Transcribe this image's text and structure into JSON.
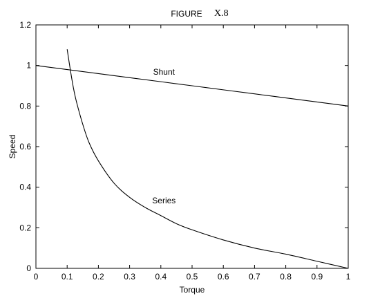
{
  "title_prefix": "FIGURE",
  "title_number": "X.8",
  "chart_data": {
    "type": "line",
    "title": "FIGURE X.8",
    "xlabel": "Torque",
    "ylabel": "Speed",
    "xlim": [
      0,
      1
    ],
    "ylim": [
      0,
      1.2
    ],
    "xticks": [
      "0",
      "0.1",
      "0.2",
      "0.3",
      "0.4",
      "0.5",
      "0.6",
      "0.7",
      "0.8",
      "0.9",
      "1"
    ],
    "yticks": [
      "0",
      "0.2",
      "0.4",
      "0.6",
      "0.8",
      "1",
      "1.2"
    ],
    "grid": false,
    "legend": "none",
    "series": [
      {
        "name": "Shunt",
        "x": [
          0,
          0.1,
          0.2,
          0.3,
          0.4,
          0.5,
          0.6,
          0.7,
          0.8,
          0.9,
          1.0
        ],
        "y": [
          1.0,
          0.98,
          0.96,
          0.94,
          0.92,
          0.9,
          0.88,
          0.86,
          0.84,
          0.82,
          0.8
        ]
      },
      {
        "name": "Series",
        "x": [
          0.1,
          0.11,
          0.12,
          0.13,
          0.15,
          0.17,
          0.2,
          0.25,
          0.3,
          0.35,
          0.4,
          0.45,
          0.5,
          0.6,
          0.7,
          0.8,
          0.9,
          1.0
        ],
        "y": [
          1.08,
          0.98,
          0.89,
          0.82,
          0.71,
          0.62,
          0.53,
          0.42,
          0.35,
          0.3,
          0.26,
          0.22,
          0.19,
          0.14,
          0.1,
          0.07,
          0.035,
          0.0
        ]
      }
    ],
    "annotations": [
      {
        "text": "Shunt",
        "x": 0.41,
        "y": 0.955
      },
      {
        "text": "Series",
        "x": 0.41,
        "y": 0.32
      }
    ],
    "line_color": "#000000"
  }
}
